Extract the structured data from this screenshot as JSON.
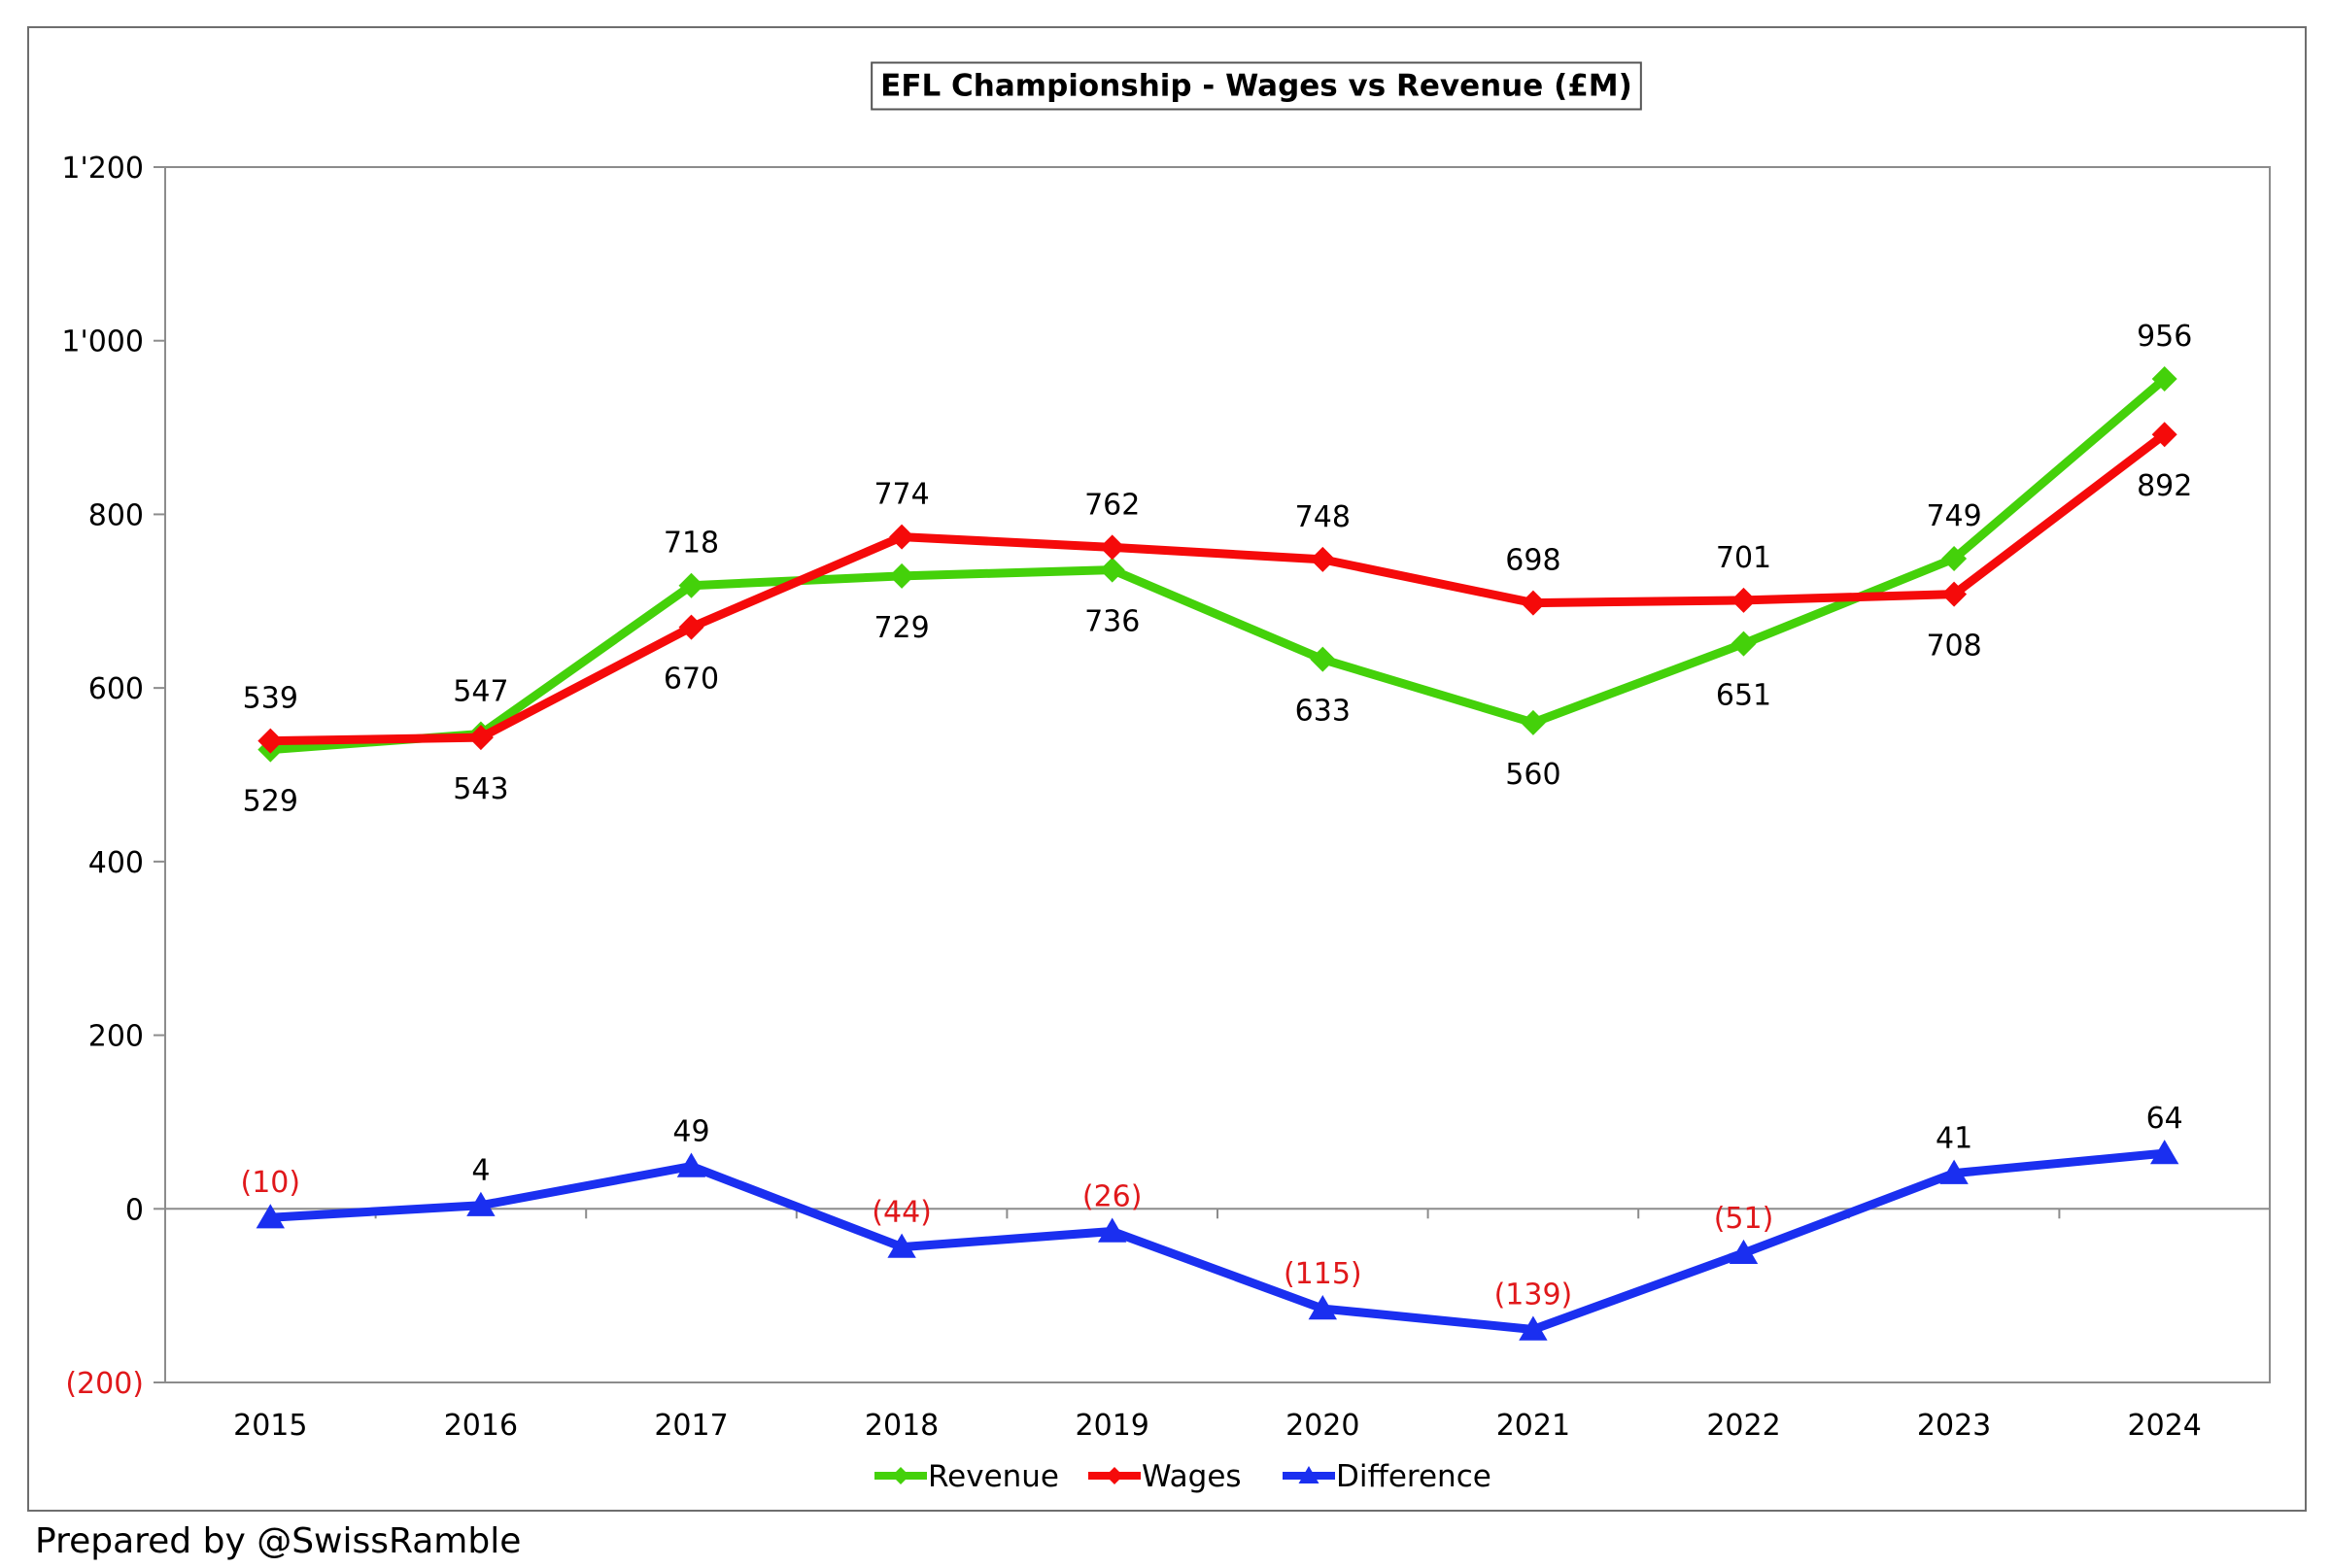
{
  "colors": {
    "revenue": "#44d10a",
    "wages": "#f50a0a",
    "difference": "#1a2ff0",
    "negative_label": "#e0181b",
    "axis": "#8c8c8c",
    "text": "#000000"
  },
  "chart_data": {
    "type": "line",
    "title": "EFL Championship - Wages vs Revenue (£M)",
    "xlabel": "",
    "ylabel": "",
    "ylim": [
      -200,
      1200
    ],
    "yticks": [
      {
        "value": 1200,
        "label": "1'200"
      },
      {
        "value": 1000,
        "label": "1'000"
      },
      {
        "value": 800,
        "label": "800"
      },
      {
        "value": 600,
        "label": "600"
      },
      {
        "value": 400,
        "label": "400"
      },
      {
        "value": 200,
        "label": "200"
      },
      {
        "value": 0,
        "label": "0"
      },
      {
        "value": -200,
        "label": "(200)"
      }
    ],
    "categories": [
      "2015",
      "2016",
      "2017",
      "2018",
      "2019",
      "2020",
      "2021",
      "2022",
      "2023",
      "2024"
    ],
    "grid": false,
    "legend_position": "bottom",
    "series": [
      {
        "name": "Revenue",
        "key": "revenue",
        "marker": "diamond",
        "values": [
          529,
          547,
          718,
          729,
          736,
          633,
          560,
          651,
          749,
          956
        ],
        "labels": [
          "529",
          "547",
          "718",
          "729",
          "736",
          "633",
          "560",
          "651",
          "749",
          "956"
        ]
      },
      {
        "name": "Wages",
        "key": "wages",
        "marker": "diamond",
        "values": [
          539,
          543,
          670,
          774,
          762,
          748,
          698,
          701,
          708,
          892
        ],
        "labels": [
          "539",
          "543",
          "670",
          "774",
          "762",
          "748",
          "698",
          "701",
          "708",
          "892"
        ]
      },
      {
        "name": "Difference",
        "key": "difference",
        "marker": "triangle",
        "values": [
          -10,
          4,
          49,
          -44,
          -26,
          -115,
          -139,
          -51,
          41,
          64
        ],
        "labels": [
          "(10)",
          "4",
          "49",
          "(44)",
          "(26)",
          "(115)",
          "(139)",
          "(51)",
          "41",
          "64"
        ]
      }
    ]
  },
  "footer": {
    "credit": "Prepared by @SwissRamble"
  }
}
